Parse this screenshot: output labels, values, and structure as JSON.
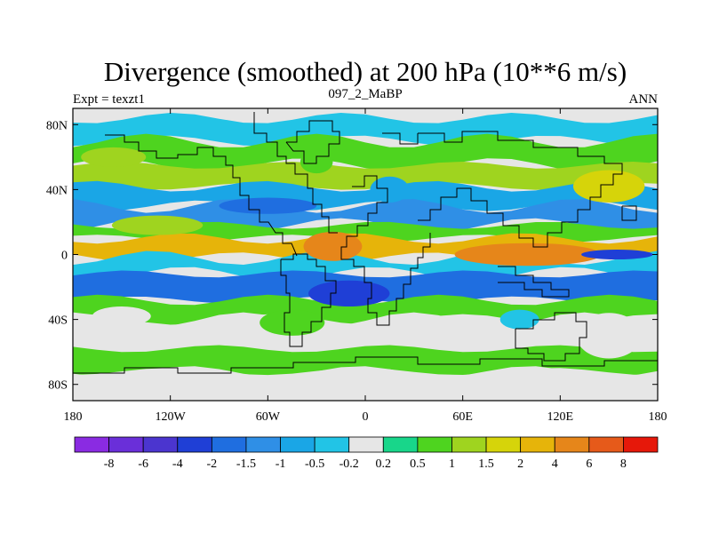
{
  "chart_data": {
    "type": "heatmap",
    "title": "Divergence (smoothed) at 200 hPa (10**6 m/s)",
    "subtitle_left": "Expt = texzt1",
    "subtitle_center": "097_2_MaBP",
    "subtitle_right": "ANN",
    "x_ticks": [
      "180",
      "120W",
      "60W",
      "0",
      "60E",
      "120E",
      "180"
    ],
    "x_tick_values": [
      -180,
      -120,
      -60,
      0,
      60,
      120,
      180
    ],
    "y_ticks": [
      "80N",
      "40N",
      "0",
      "40S",
      "80S"
    ],
    "y_tick_values": [
      80,
      40,
      0,
      -40,
      -80
    ],
    "xlim": [
      -180,
      180
    ],
    "ylim": [
      -90,
      90
    ],
    "colorbar": {
      "levels": [
        "-8",
        "-6",
        "-4",
        "-2",
        "-1.5",
        "-1",
        "-0.5",
        "-0.2",
        "0.2",
        "0.5",
        "1",
        "1.5",
        "2",
        "4",
        "6",
        "8"
      ],
      "colors": [
        "#8a2be2",
        "#6a2fd9",
        "#4b35cf",
        "#1f3fd6",
        "#1f6ee0",
        "#2f8fe6",
        "#1aa6e6",
        "#22c4e6",
        "#e6e6e6",
        "#18d68a",
        "#4ed41f",
        "#9fd41f",
        "#d6d40a",
        "#e6b40a",
        "#e6861a",
        "#e65a1a",
        "#e6180a"
      ]
    },
    "bands": [
      {
        "lat_top": 90,
        "lat_bot": 84,
        "value": "0"
      },
      {
        "lat_top": 84,
        "lat_bot": 70,
        "value": "-0.5"
      },
      {
        "lat_top": 70,
        "lat_bot": 55,
        "value": "0.5"
      },
      {
        "lat_top": 55,
        "lat_bot": 42,
        "value": "1"
      },
      {
        "lat_top": 42,
        "lat_bot": 30,
        "value": "-1"
      },
      {
        "lat_top": 30,
        "lat_bot": 18,
        "value": "-1.5"
      },
      {
        "lat_top": 18,
        "lat_bot": 10,
        "value": "0.5"
      },
      {
        "lat_top": 10,
        "lat_bot": -2,
        "value": "2"
      },
      {
        "lat_top": -2,
        "lat_bot": -12,
        "value": "-0.5"
      },
      {
        "lat_top": -12,
        "lat_bot": -28,
        "value": "-2"
      },
      {
        "lat_top": -28,
        "lat_bot": -40,
        "value": "0.5"
      },
      {
        "lat_top": -40,
        "lat_bot": -58,
        "value": "0"
      },
      {
        "lat_top": -58,
        "lat_bot": -72,
        "value": "0.5"
      },
      {
        "lat_top": -72,
        "lat_bot": -90,
        "value": "0"
      }
    ],
    "blobs": [
      {
        "lon": -128,
        "lat": 18,
        "rlon": 28,
        "rlat": 6,
        "value": "1"
      },
      {
        "lon": -20,
        "lat": 5,
        "rlon": 18,
        "rlat": 9,
        "value": "4"
      },
      {
        "lon": 100,
        "lat": 0,
        "rlon": 45,
        "rlat": 7,
        "value": "4"
      },
      {
        "lon": 155,
        "lat": 0,
        "rlon": 22,
        "rlat": 3,
        "value": "-4"
      },
      {
        "lon": -10,
        "lat": -24,
        "rlon": 25,
        "rlat": 8,
        "value": "-4"
      },
      {
        "lon": -60,
        "lat": 30,
        "rlon": 30,
        "rlat": 5,
        "value": "-2"
      },
      {
        "lon": 150,
        "lat": 42,
        "rlon": 22,
        "rlat": 10,
        "value": "1.5"
      },
      {
        "lon": -155,
        "lat": 60,
        "rlon": 20,
        "rlat": 6,
        "value": "1"
      },
      {
        "lon": -150,
        "lat": -38,
        "rlon": 18,
        "rlat": 6,
        "value": "0"
      },
      {
        "lon": -45,
        "lat": -42,
        "rlon": 20,
        "rlat": 8,
        "value": "0.5"
      },
      {
        "lon": 150,
        "lat": -50,
        "rlon": 20,
        "rlat": 14,
        "value": "0"
      },
      {
        "lon": -30,
        "lat": 57,
        "rlon": 10,
        "rlat": 7,
        "value": "0.5"
      },
      {
        "lon": 15,
        "lat": 40,
        "rlon": 12,
        "rlat": 8,
        "value": "-1"
      },
      {
        "lon": 95,
        "lat": -40,
        "rlon": 12,
        "rlat": 6,
        "value": "-0.5"
      }
    ]
  }
}
